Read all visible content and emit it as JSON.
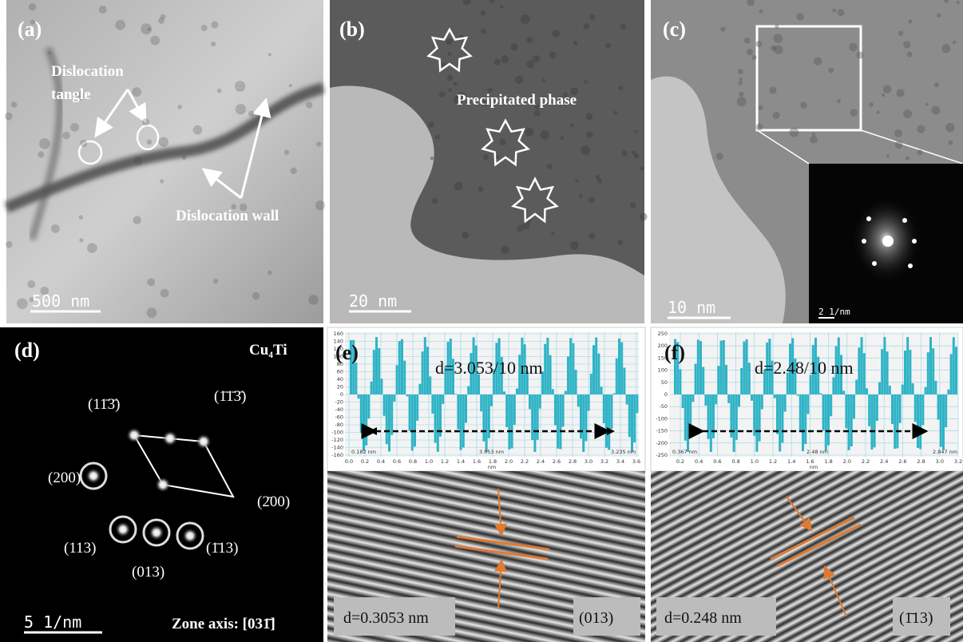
{
  "panels": {
    "a": {
      "label": "(a)",
      "scale_bar": "500 nm",
      "annotations": [
        "Dislocation",
        "tangle",
        "Dislocation wall"
      ]
    },
    "b": {
      "label": "(b)",
      "scale_bar": "20 nm",
      "annotation": "Precipitated phase"
    },
    "c": {
      "label": "(c)",
      "scale_bar": "10 nm",
      "inset_scale_bar": "2 1/nm"
    },
    "d": {
      "label": "(d)",
      "phase": "Cu₄Ti",
      "spots": [
        "(11̄3̄)",
        "(1̄1̄3̄)",
        "(200)",
        "(2̄00)",
        "(113)",
        "(013)",
        "(1̄13)"
      ],
      "scale_bar": "5 1/nm",
      "zone_axis": "Zone axis: [031̄]"
    },
    "e": {
      "label": "(e)",
      "profile_label": "d=3.053/10 nm",
      "yticks": [
        "160",
        "140",
        "120",
        "100",
        "80",
        "60",
        "40",
        "20",
        "0",
        "-20",
        "-40",
        "-60",
        "-80",
        "-100",
        "-120",
        "-140",
        "-160"
      ],
      "xticks": [
        "0.0",
        "0.2",
        "0.4",
        "0.6",
        "0.8",
        "1.0",
        "1.2",
        "1.4",
        "1.6",
        "1.8",
        "2.0",
        "2.2",
        "2.4",
        "2.6",
        "2.8",
        "3.0",
        "3.2",
        "3.4",
        "3.6"
      ],
      "x_unit": "nm",
      "markers": [
        "0.182 nm",
        "3.053 nm",
        "3.235 nm"
      ],
      "fringe_label": "d=0.3053 nm",
      "plane": "(013)"
    },
    "f": {
      "label": "(f)",
      "profile_label": "d=2.48/10 nm",
      "yticks": [
        "250",
        "200",
        "150",
        "100",
        "50",
        "0",
        "-50",
        "-100",
        "-150",
        "-200",
        "-250"
      ],
      "xticks": [
        "0.2",
        "0.4",
        "0.6",
        "0.8",
        "1.0",
        "1.2",
        "1.4",
        "1.6",
        "1.8",
        "2.0",
        "2.2",
        "2.4",
        "2.6",
        "2.8",
        "3.0",
        "3.2"
      ],
      "x_unit": "nm",
      "markers": [
        "0.367 nm",
        "2.48 nm",
        "2.847 nm"
      ],
      "fringe_label": "d=0.248 nm",
      "plane": "(1̄13)"
    }
  }
}
